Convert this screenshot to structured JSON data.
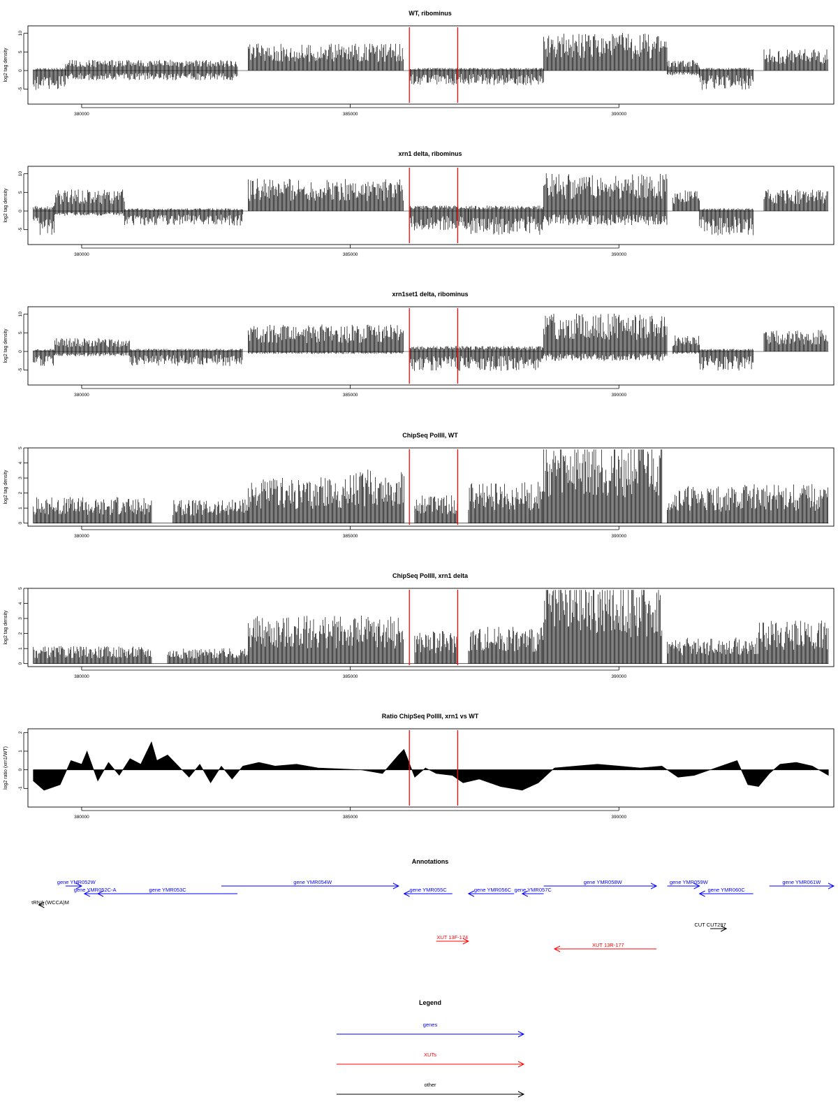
{
  "colors": {
    "gene": "#0000ff",
    "xut": "#ff0000",
    "other": "#000000",
    "marker": "#ff0000",
    "bars": "#000000"
  },
  "chart_data": [
    {
      "type": "bar",
      "title": "WT, ribominus",
      "ylabel": "log2 tag density",
      "xlim": [
        379000,
        394000
      ],
      "ylim": [
        -9,
        12
      ],
      "yticks": [
        -5,
        0,
        5,
        10
      ],
      "xticks": [
        380000,
        385000,
        390000
      ],
      "markers": [
        386100,
        387000
      ],
      "segments": [
        {
          "from": 379100,
          "to": 379700,
          "pos": 0.5,
          "neg": -4
        },
        {
          "from": 379700,
          "to": 382900,
          "pos": 2,
          "neg": -2
        },
        {
          "from": 383100,
          "to": 386000,
          "pos": 5,
          "neg": 0
        },
        {
          "from": 386100,
          "to": 388600,
          "pos": 0.5,
          "neg": -3
        },
        {
          "from": 388600,
          "to": 390900,
          "pos": 7,
          "neg": 0
        },
        {
          "from": 390900,
          "to": 391500,
          "pos": 2,
          "neg": -1
        },
        {
          "from": 391500,
          "to": 392500,
          "pos": 0.5,
          "neg": -4
        },
        {
          "from": 392700,
          "to": 393900,
          "pos": 4,
          "neg": 0
        }
      ]
    },
    {
      "type": "bar",
      "title": "xrn1 delta, ribominus",
      "ylabel": "log2 tag density",
      "xlim": [
        379000,
        394000
      ],
      "ylim": [
        -9,
        12
      ],
      "yticks": [
        -5,
        0,
        5,
        10
      ],
      "xticks": [
        380000,
        385000,
        390000
      ],
      "markers": [
        386100,
        387000
      ],
      "segments": [
        {
          "from": 379100,
          "to": 379500,
          "pos": 1,
          "neg": -5
        },
        {
          "from": 379500,
          "to": 380800,
          "pos": 4,
          "neg": -1
        },
        {
          "from": 380800,
          "to": 383000,
          "pos": 0.5,
          "neg": -3
        },
        {
          "from": 383100,
          "to": 386000,
          "pos": 6,
          "neg": 0
        },
        {
          "from": 386100,
          "to": 387200,
          "pos": 1,
          "neg": -4
        },
        {
          "from": 387200,
          "to": 388600,
          "pos": 1,
          "neg": -5
        },
        {
          "from": 388600,
          "to": 390900,
          "pos": 7,
          "neg": -3
        },
        {
          "from": 391000,
          "to": 391500,
          "pos": 4,
          "neg": 0
        },
        {
          "from": 391500,
          "to": 392500,
          "pos": 0.5,
          "neg": -5
        },
        {
          "from": 392700,
          "to": 393900,
          "pos": 4,
          "neg": 0
        }
      ]
    },
    {
      "type": "bar",
      "title": "xrn1set1 delta, ribominus",
      "ylabel": "log2 tag density",
      "xlim": [
        379000,
        394000
      ],
      "ylim": [
        -9,
        12
      ],
      "yticks": [
        -5,
        0,
        5,
        10
      ],
      "xticks": [
        380000,
        385000,
        390000
      ],
      "markers": [
        386100,
        387000
      ],
      "segments": [
        {
          "from": 379100,
          "to": 379500,
          "pos": 0.5,
          "neg": -3
        },
        {
          "from": 379500,
          "to": 380900,
          "pos": 2.5,
          "neg": -1
        },
        {
          "from": 380900,
          "to": 383000,
          "pos": 0.5,
          "neg": -3
        },
        {
          "from": 383100,
          "to": 386000,
          "pos": 5,
          "neg": -0.5
        },
        {
          "from": 386100,
          "to": 387200,
          "pos": 1,
          "neg": -4
        },
        {
          "from": 387200,
          "to": 388600,
          "pos": 1,
          "neg": -4
        },
        {
          "from": 388600,
          "to": 390900,
          "pos": 7,
          "neg": -2
        },
        {
          "from": 391000,
          "to": 391500,
          "pos": 3,
          "neg": -0.5
        },
        {
          "from": 391500,
          "to": 392500,
          "pos": 0.5,
          "neg": -4
        },
        {
          "from": 392700,
          "to": 393900,
          "pos": 4,
          "neg": 0
        }
      ]
    },
    {
      "type": "bar",
      "title": "ChipSeq PolIII, WT",
      "ylabel": "log2 tag density",
      "xlim": [
        379000,
        394000
      ],
      "ylim": [
        -0.2,
        5
      ],
      "yticks": [
        0,
        1,
        2,
        3,
        4,
        5
      ],
      "xticks": [
        380000,
        385000,
        390000
      ],
      "markers": [
        386100,
        387000
      ],
      "segments": [
        {
          "from": 379100,
          "to": 381300,
          "pos": 1.2,
          "neg": 0
        },
        {
          "from": 381700,
          "to": 383100,
          "pos": 1.1,
          "neg": 0
        },
        {
          "from": 383100,
          "to": 385000,
          "pos": 2.1,
          "neg": 0
        },
        {
          "from": 385000,
          "to": 386000,
          "pos": 2.5,
          "neg": 0
        },
        {
          "from": 386200,
          "to": 387000,
          "pos": 1.3,
          "neg": 0
        },
        {
          "from": 387200,
          "to": 388600,
          "pos": 1.9,
          "neg": 0
        },
        {
          "from": 388600,
          "to": 390800,
          "pos": 3.8,
          "neg": 0
        },
        {
          "from": 390900,
          "to": 392300,
          "pos": 1.7,
          "neg": 0
        },
        {
          "from": 392300,
          "to": 393900,
          "pos": 1.8,
          "neg": 0
        }
      ]
    },
    {
      "type": "bar",
      "title": "ChipSeq PolIII, xrn1 delta",
      "ylabel": "log2 tag density",
      "xlim": [
        379000,
        394000
      ],
      "ylim": [
        -0.2,
        5
      ],
      "yticks": [
        0,
        1,
        2,
        3,
        4,
        5
      ],
      "xticks": [
        380000,
        385000,
        390000
      ],
      "markers": [
        386100,
        387000
      ],
      "segments": [
        {
          "from": 379100,
          "to": 381300,
          "pos": 0.8,
          "neg": 0
        },
        {
          "from": 381600,
          "to": 383100,
          "pos": 0.7,
          "neg": 0
        },
        {
          "from": 383100,
          "to": 386000,
          "pos": 2.2,
          "neg": 0
        },
        {
          "from": 386200,
          "to": 387000,
          "pos": 1.5,
          "neg": 0
        },
        {
          "from": 387200,
          "to": 388600,
          "pos": 1.7,
          "neg": 0
        },
        {
          "from": 388600,
          "to": 390800,
          "pos": 3.9,
          "neg": 0
        },
        {
          "from": 390900,
          "to": 392600,
          "pos": 1.2,
          "neg": 0
        },
        {
          "from": 392600,
          "to": 393900,
          "pos": 2.0,
          "neg": 0
        }
      ]
    },
    {
      "type": "area",
      "title": "Ratio ChipSeq PolIII, xrn1 vs WT",
      "ylabel": "log2 ratio (xrn1/WT)",
      "xlim": [
        379000,
        394000
      ],
      "ylim": [
        -2,
        2.2
      ],
      "yticks": [
        -1,
        0,
        1,
        2
      ],
      "xticks": [
        380000,
        385000,
        390000
      ],
      "markers": [
        386100,
        387000
      ],
      "x": [
        379100,
        379300,
        379600,
        379800,
        380000,
        380100,
        380300,
        380500,
        380700,
        380900,
        381100,
        381300,
        381400,
        381600,
        381800,
        382000,
        382200,
        382400,
        382600,
        382800,
        383000,
        383300,
        383600,
        384000,
        384400,
        384800,
        385200,
        385600,
        385900,
        386000,
        386200,
        386400,
        386600,
        386900,
        387100,
        387400,
        387800,
        388200,
        388500,
        388800,
        389200,
        389600,
        390000,
        390400,
        390800,
        391100,
        391400,
        391800,
        392200,
        392400,
        392600,
        392800,
        393000,
        393300,
        393600,
        393900
      ],
      "values": [
        -0.6,
        -1.1,
        -0.8,
        0.5,
        0.3,
        1.0,
        -0.6,
        0.4,
        -0.3,
        0.6,
        0.3,
        1.5,
        0.5,
        0.8,
        0.2,
        -0.4,
        0.3,
        -0.7,
        0.2,
        -0.5,
        0.2,
        0.4,
        0.2,
        0.3,
        0.1,
        0.05,
        0,
        -0.2,
        0.8,
        1.1,
        -0.4,
        0.1,
        -0.2,
        -0.3,
        -0.7,
        -0.5,
        -0.9,
        -1.1,
        -0.7,
        0.1,
        0.2,
        0.3,
        0.2,
        0.1,
        0.2,
        -0.4,
        -0.3,
        0.1,
        0.5,
        -0.8,
        -0.9,
        -0.2,
        0.3,
        0.4,
        0.2,
        -0.3
      ]
    }
  ],
  "annotations": {
    "title": "Annotations",
    "xlim": [
      379000,
      394000
    ],
    "features": [
      {
        "kind": "gene",
        "label": "gene YMR052W",
        "from": 379700,
        "to": 380000,
        "row": 0,
        "dir": "right",
        "label_x": 379900
      },
      {
        "kind": "gene",
        "label": "gene YMR052C-A",
        "from": 380050,
        "to": 380300,
        "row": 1,
        "dir": "left",
        "label_x": 380250
      },
      {
        "kind": "gene",
        "label": "gene YMR053C",
        "from": 380300,
        "to": 382900,
        "row": 1,
        "dir": "left",
        "label_x": 381600
      },
      {
        "kind": "gene",
        "label": "gene YMR054W",
        "from": 382600,
        "to": 385900,
        "row": 0,
        "dir": "right",
        "label_x": 384300
      },
      {
        "kind": "gene",
        "label": "gene YMR055C",
        "from": 386000,
        "to": 386900,
        "row": 1,
        "dir": "left",
        "label_x": 386450
      },
      {
        "kind": "gene",
        "label": "gene YMR056C",
        "from": 387200,
        "to": 388050,
        "row": 1,
        "dir": "left",
        "label_x": 387650
      },
      {
        "kind": "gene",
        "label": "gene YMR057C",
        "from": 388200,
        "to": 388600,
        "row": 1,
        "dir": "left",
        "label_x": 388400
      },
      {
        "kind": "gene",
        "label": "gene YMR058W",
        "from": 388600,
        "to": 390700,
        "row": 0,
        "dir": "right",
        "label_x": 389700
      },
      {
        "kind": "gene",
        "label": "gene YMR059W",
        "from": 390900,
        "to": 391500,
        "row": 0,
        "dir": "right",
        "label_x": 391300
      },
      {
        "kind": "gene",
        "label": "gene YMR060C",
        "from": 391500,
        "to": 392500,
        "row": 1,
        "dir": "left",
        "label_x": 392000
      },
      {
        "kind": "gene",
        "label": "gene YMR061W",
        "from": 392800,
        "to": 394000,
        "row": 0,
        "dir": "right",
        "label_x": 393400
      },
      {
        "kind": "other",
        "label": "tRNA (WCCA)M",
        "from": 379200,
        "to": 379300,
        "row": 2,
        "dir": "left",
        "label_x": 378800
      },
      {
        "kind": "other",
        "label": "CUT CUT297",
        "from": 391700,
        "to": 392000,
        "row": 3,
        "dir": "right",
        "label_x": 391700
      },
      {
        "kind": "xut",
        "label": "XUT 13F-174",
        "from": 386600,
        "to": 387200,
        "row": 4,
        "dir": "right",
        "label_x": 386900
      },
      {
        "kind": "xut",
        "label": "XUT 13R-177",
        "from": 388800,
        "to": 390700,
        "row": 5,
        "dir": "left",
        "label_x": 389800
      }
    ]
  },
  "legend": {
    "title": "Legend",
    "items": [
      {
        "label": "genes",
        "kind": "gene"
      },
      {
        "label": "XUTs",
        "kind": "xut"
      },
      {
        "label": "other",
        "kind": "other"
      }
    ]
  }
}
